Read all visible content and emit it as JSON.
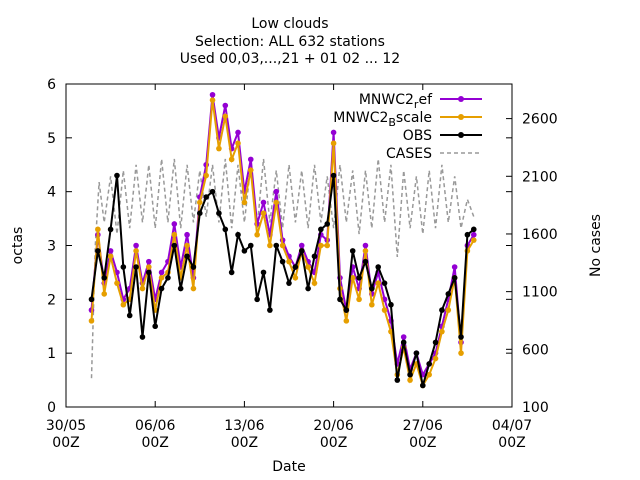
{
  "chart_data": {
    "type": "line",
    "title": [
      "Low clouds",
      "Selection: ALL    632 stations",
      "Used 00,03,...,21 + 01 02 ... 12"
    ],
    "xlabel": "Date",
    "ylabel": "octas",
    "y2label": "No cases",
    "xlim": [
      0,
      35
    ],
    "ylim": [
      0,
      6
    ],
    "y2lim": [
      100,
      2900
    ],
    "xticks": [
      {
        "x": 0,
        "line1": "30/05",
        "line2": "00Z"
      },
      {
        "x": 7,
        "line1": "06/06",
        "line2": "00Z"
      },
      {
        "x": 14,
        "line1": "13/06",
        "line2": "00Z"
      },
      {
        "x": 21,
        "line1": "20/06",
        "line2": "00Z"
      },
      {
        "x": 28,
        "line1": "27/06",
        "line2": "00Z"
      },
      {
        "x": 35,
        "line1": "04/07",
        "line2": "00Z"
      }
    ],
    "yticks": [
      "0",
      "1",
      "2",
      "3",
      "4",
      "5",
      "6"
    ],
    "y2ticks": [
      "100",
      "600",
      "1100",
      "1600",
      "2100",
      "2600"
    ],
    "legend_position": "top-right",
    "series": [
      {
        "name": "MNWC2_ref",
        "label_main": "MNWC2",
        "label_sub": "r",
        "label_tail": "ef",
        "color": "#9400d3",
        "style": "line-points",
        "x": [
          2,
          2.5,
          3,
          3.5,
          4,
          4.5,
          5,
          5.5,
          6,
          6.5,
          7,
          7.5,
          8,
          8.5,
          9,
          9.5,
          10,
          10.5,
          11,
          11.5,
          12,
          12.5,
          13,
          13.5,
          14,
          14.5,
          15,
          15.5,
          16,
          16.5,
          17,
          17.5,
          18,
          18.5,
          19,
          19.5,
          20,
          20.5,
          21,
          21.5,
          22,
          22.5,
          23,
          23.5,
          24,
          24.5,
          25,
          25.5,
          26,
          26.5,
          27,
          27.5,
          28,
          28.5,
          29,
          29.5,
          30,
          30.5,
          31,
          31.5,
          32
        ],
        "y": [
          1.8,
          3.2,
          2.3,
          2.9,
          2.5,
          2.0,
          2.2,
          3.0,
          2.3,
          2.7,
          2.0,
          2.5,
          2.7,
          3.4,
          2.6,
          3.2,
          2.4,
          3.9,
          4.5,
          5.8,
          5.0,
          5.6,
          4.8,
          5.1,
          4.0,
          4.6,
          3.4,
          3.8,
          3.2,
          4.0,
          3.1,
          2.8,
          2.6,
          3.0,
          2.7,
          2.5,
          3.2,
          3.1,
          5.1,
          2.4,
          1.8,
          2.6,
          2.2,
          3.0,
          2.1,
          2.5,
          2.0,
          1.6,
          0.8,
          1.3,
          0.7,
          1.0,
          0.6,
          0.8,
          1.0,
          1.5,
          2.0,
          2.6,
          1.2,
          3.0,
          3.2
        ]
      },
      {
        "name": "MNWC2_Bscale",
        "label_main": "MNWC2",
        "label_sub": "B",
        "label_tail": "scale",
        "color": "#e69f00",
        "style": "line-points",
        "x": [
          2,
          2.5,
          3,
          3.5,
          4,
          4.5,
          5,
          5.5,
          6,
          6.5,
          7,
          7.5,
          8,
          8.5,
          9,
          9.5,
          10,
          10.5,
          11,
          11.5,
          12,
          12.5,
          13,
          13.5,
          14,
          14.5,
          15,
          15.5,
          16,
          16.5,
          17,
          17.5,
          18,
          18.5,
          19,
          19.5,
          20,
          20.5,
          21,
          21.5,
          22,
          22.5,
          23,
          23.5,
          24,
          24.5,
          25,
          25.5,
          26,
          26.5,
          27,
          27.5,
          28,
          28.5,
          29,
          29.5,
          30,
          30.5,
          31,
          31.5,
          32
        ],
        "y": [
          1.6,
          3.3,
          2.1,
          2.8,
          2.3,
          1.9,
          2.0,
          2.9,
          2.2,
          2.6,
          1.8,
          2.4,
          2.5,
          3.2,
          2.4,
          3.0,
          2.2,
          3.8,
          4.3,
          5.7,
          4.8,
          5.4,
          4.6,
          4.9,
          3.8,
          4.4,
          3.2,
          3.6,
          3.0,
          3.8,
          3.0,
          2.7,
          2.4,
          2.9,
          2.6,
          2.3,
          3.0,
          3.0,
          4.9,
          2.2,
          1.6,
          2.4,
          2.0,
          2.9,
          1.9,
          2.3,
          1.8,
          1.4,
          0.6,
          1.1,
          0.5,
          0.8,
          0.4,
          0.6,
          0.9,
          1.4,
          1.8,
          2.4,
          1.0,
          2.9,
          3.1
        ]
      },
      {
        "name": "OBS",
        "label_main": "OBS",
        "color": "#000000",
        "style": "line-points",
        "x": [
          2,
          2.5,
          3,
          3.5,
          4,
          4.5,
          5,
          5.5,
          6,
          6.5,
          7,
          7.5,
          8,
          8.5,
          9,
          9.5,
          10,
          10.5,
          11,
          11.5,
          12,
          12.5,
          13,
          13.5,
          14,
          14.5,
          15,
          15.5,
          16,
          16.5,
          17,
          17.5,
          18,
          18.5,
          19,
          19.5,
          20,
          20.5,
          21,
          21.5,
          22,
          22.5,
          23,
          23.5,
          24,
          24.5,
          25,
          25.5,
          26,
          26.5,
          27,
          27.5,
          28,
          28.5,
          29,
          29.5,
          30,
          30.5,
          31,
          31.5,
          32
        ],
        "y": [
          2.0,
          2.9,
          2.4,
          3.3,
          4.3,
          2.6,
          1.7,
          2.6,
          1.3,
          2.5,
          1.5,
          2.2,
          2.4,
          3.0,
          2.2,
          2.8,
          2.6,
          3.6,
          3.9,
          4.0,
          3.6,
          3.3,
          2.5,
          3.2,
          2.9,
          3.0,
          2.0,
          2.5,
          1.8,
          3.0,
          2.7,
          2.3,
          2.6,
          2.9,
          2.2,
          2.8,
          3.3,
          3.4,
          4.3,
          2.0,
          1.8,
          2.9,
          2.4,
          2.7,
          2.2,
          2.6,
          2.3,
          1.9,
          0.5,
          1.2,
          0.6,
          1.0,
          0.4,
          0.8,
          1.2,
          1.8,
          2.1,
          2.4,
          1.3,
          3.2,
          3.3
        ]
      },
      {
        "name": "CASES",
        "label_main": "CASES",
        "color": "#999999",
        "style": "dashed",
        "axis": "y2",
        "x": [
          2,
          2.3,
          2.6,
          3,
          3.5,
          4,
          4.5,
          5,
          5.5,
          6,
          6.5,
          7,
          7.5,
          8,
          8.5,
          9,
          9.5,
          10,
          10.5,
          11,
          11.5,
          12,
          12.5,
          13,
          13.5,
          14,
          14.5,
          15,
          15.5,
          16,
          16.5,
          17,
          17.5,
          18,
          18.5,
          19,
          19.5,
          20,
          20.5,
          21,
          21.5,
          22,
          22.5,
          23,
          23.5,
          24,
          24.5,
          25,
          25.5,
          26,
          26.5,
          27,
          27.5,
          28,
          28.5,
          29,
          29.5,
          30,
          30.5,
          31,
          31.5,
          32
        ],
        "y": [
          350,
          1500,
          2050,
          1700,
          2100,
          1600,
          2150,
          1650,
          2200,
          1700,
          2200,
          1650,
          2250,
          1700,
          2250,
          1650,
          2200,
          1700,
          2150,
          1750,
          2200,
          1700,
          2250,
          1650,
          2200,
          1700,
          2200,
          1650,
          2250,
          1700,
          2150,
          1650,
          2200,
          1700,
          2150,
          1650,
          2200,
          1700,
          2100,
          1650,
          2200,
          1700,
          2150,
          1600,
          2150,
          1650,
          2250,
          1700,
          2200,
          1400,
          2150,
          1650,
          2100,
          1600,
          2150,
          1650,
          2200,
          1700,
          2100,
          1650,
          1900,
          1750
        ]
      }
    ]
  }
}
